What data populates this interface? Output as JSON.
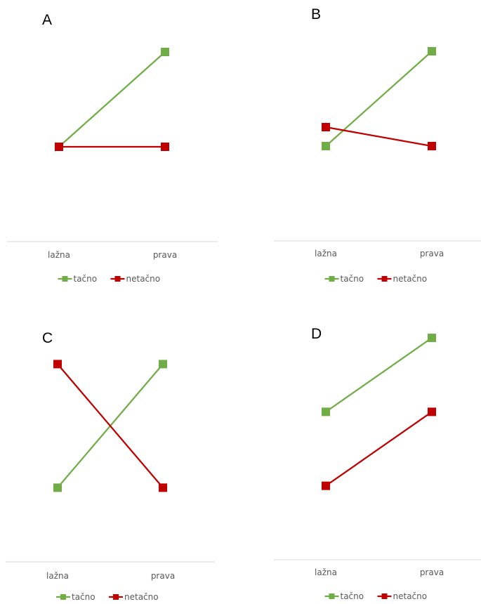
{
  "colors": {
    "tacno": "#70ad47",
    "netacno": "#c00000",
    "axis": "#d9d9d9",
    "text": "#595959"
  },
  "chart_data": [
    {
      "panel": "A",
      "type": "line",
      "categories": [
        "lažna",
        "prava"
      ],
      "ylim": [
        0,
        10
      ],
      "grid": false,
      "legend_position": "bottom",
      "series": [
        {
          "name": "tačno",
          "values": [
            5,
            10
          ]
        },
        {
          "name": "netačno",
          "values": [
            5,
            5
          ]
        }
      ]
    },
    {
      "panel": "B",
      "type": "line",
      "categories": [
        "lažna",
        "prava"
      ],
      "ylim": [
        0,
        10
      ],
      "grid": false,
      "legend_position": "bottom",
      "series": [
        {
          "name": "tačno",
          "values": [
            5,
            10
          ]
        },
        {
          "name": "netačno",
          "values": [
            6,
            5
          ]
        }
      ]
    },
    {
      "panel": "C",
      "type": "line",
      "categories": [
        "lažna",
        "prava"
      ],
      "ylim": [
        0,
        10
      ],
      "grid": false,
      "legend_position": "bottom",
      "series": [
        {
          "name": "tačno",
          "values": [
            3,
            8
          ]
        },
        {
          "name": "netačno",
          "values": [
            8,
            3
          ]
        }
      ]
    },
    {
      "panel": "D",
      "type": "line",
      "categories": [
        "lažna",
        "prava"
      ],
      "ylim": [
        0,
        10
      ],
      "grid": false,
      "legend_position": "bottom",
      "series": [
        {
          "name": "tačno",
          "values": [
            6,
            9
          ]
        },
        {
          "name": "netačno",
          "values": [
            3,
            6
          ]
        }
      ]
    }
  ]
}
